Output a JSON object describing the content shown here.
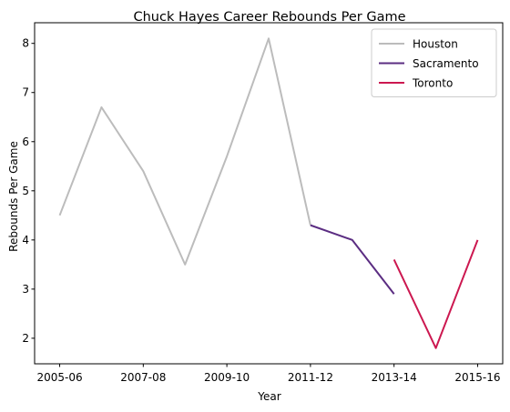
{
  "chart_data": {
    "type": "line",
    "title": "Chuck Hayes Career Rebounds Per Game",
    "xlabel": "Year",
    "ylabel": "Rebounds Per Game",
    "x_tick_labels": [
      "2005-06",
      "2007-08",
      "2009-10",
      "2011-12",
      "2013-14",
      "2015-16"
    ],
    "x_tick_positions": [
      0,
      2,
      4,
      6,
      8,
      10
    ],
    "y_ticks": [
      2,
      3,
      4,
      5,
      6,
      7,
      8
    ],
    "xlim": [
      -0.6,
      10.6
    ],
    "ylim": [
      1.48,
      8.42
    ],
    "grid": false,
    "legend_position": "top-right",
    "series": [
      {
        "name": "Houston",
        "color": "#bcbcbc",
        "x": [
          0,
          1,
          2,
          3,
          4,
          5,
          6
        ],
        "y": [
          4.5,
          6.7,
          5.4,
          3.5,
          5.7,
          8.1,
          4.3
        ]
      },
      {
        "name": "Sacramento",
        "color": "#5b2d82",
        "x": [
          6,
          7,
          8
        ],
        "y": [
          4.3,
          4.0,
          2.9
        ]
      },
      {
        "name": "Toronto",
        "color": "#cc1850",
        "x": [
          8,
          8,
          9,
          10
        ],
        "y": [
          3.6,
          3.6,
          1.8,
          4.0
        ]
      }
    ]
  }
}
